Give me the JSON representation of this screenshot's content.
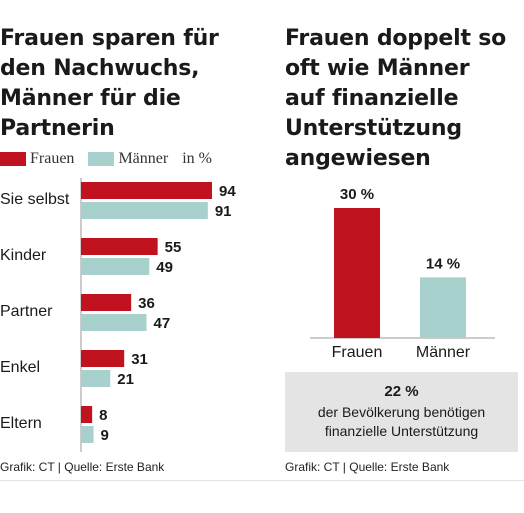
{
  "colors": {
    "frauen": "#c1121f",
    "maenner": "#a8d0cd",
    "axis": "#999999"
  },
  "left": {
    "title": "Frauen sparen für\nden Nachwuchs,\nMänner für die\nPartnerin",
    "legend": {
      "frauen": "Frauen",
      "maenner": "Männer",
      "unit": "in %"
    },
    "footer": "Grafik: CT | Quelle: Erste Bank"
  },
  "right": {
    "title": "Frauen doppelt so\noft wie Männer\nauf finanzielle\nUnterstützung\nangewiesen",
    "note_value": "22 %",
    "note_text": "der Bevölkerung benötigen\nfinanzielle Unterstützung",
    "footer": "Grafik: CT | Quelle: Erste Bank"
  },
  "chart_data": [
    {
      "type": "bar",
      "orientation": "horizontal",
      "categories": [
        "Sie selbst",
        "Kinder",
        "Partner",
        "Enkel",
        "Eltern"
      ],
      "series": [
        {
          "name": "Frauen",
          "values": [
            94,
            55,
            36,
            31,
            8
          ]
        },
        {
          "name": "Männer",
          "values": [
            91,
            49,
            47,
            21,
            9
          ]
        }
      ],
      "unit": "in %",
      "xlim": [
        0,
        100
      ],
      "legend": "top-left",
      "grid": false
    },
    {
      "type": "bar",
      "orientation": "vertical",
      "categories": [
        "Frauen",
        "Männer"
      ],
      "values": [
        30,
        14
      ],
      "value_labels": [
        "30 %",
        "14 %"
      ],
      "ylim": [
        0,
        30
      ],
      "grid": false
    }
  ]
}
